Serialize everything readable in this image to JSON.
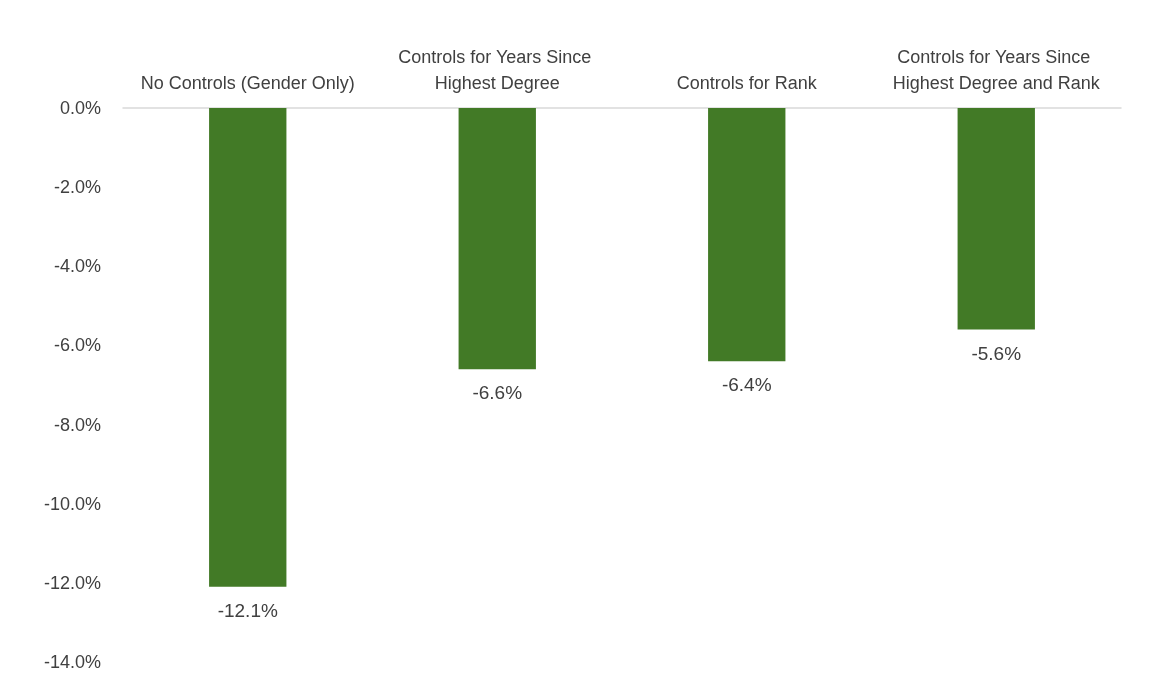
{
  "chart_data": {
    "type": "bar",
    "categories": [
      "No Controls (Gender Only)",
      "Controls for Years Since Highest Degree",
      "Controls for Rank",
      "Controls for Years Since Highest Degree and Rank"
    ],
    "values": [
      -12.1,
      -6.6,
      -6.4,
      -5.6
    ],
    "value_labels": [
      "-12.1%",
      "-6.6%",
      "-6.4%",
      "-5.6%"
    ],
    "color": "#427a26",
    "ylim": [
      -14,
      0
    ],
    "yticks": [
      {
        "value": 0,
        "label": "0.0%"
      },
      {
        "value": -2,
        "label": "-2.0%"
      },
      {
        "value": -4,
        "label": "-4.0%"
      },
      {
        "value": -6,
        "label": "-6.0%"
      },
      {
        "value": -8,
        "label": "-8.0%"
      },
      {
        "value": -10,
        "label": "-10.0%"
      },
      {
        "value": -12,
        "label": "-12.0%"
      },
      {
        "value": -14,
        "label": "-14.0%"
      }
    ],
    "grid": false
  }
}
